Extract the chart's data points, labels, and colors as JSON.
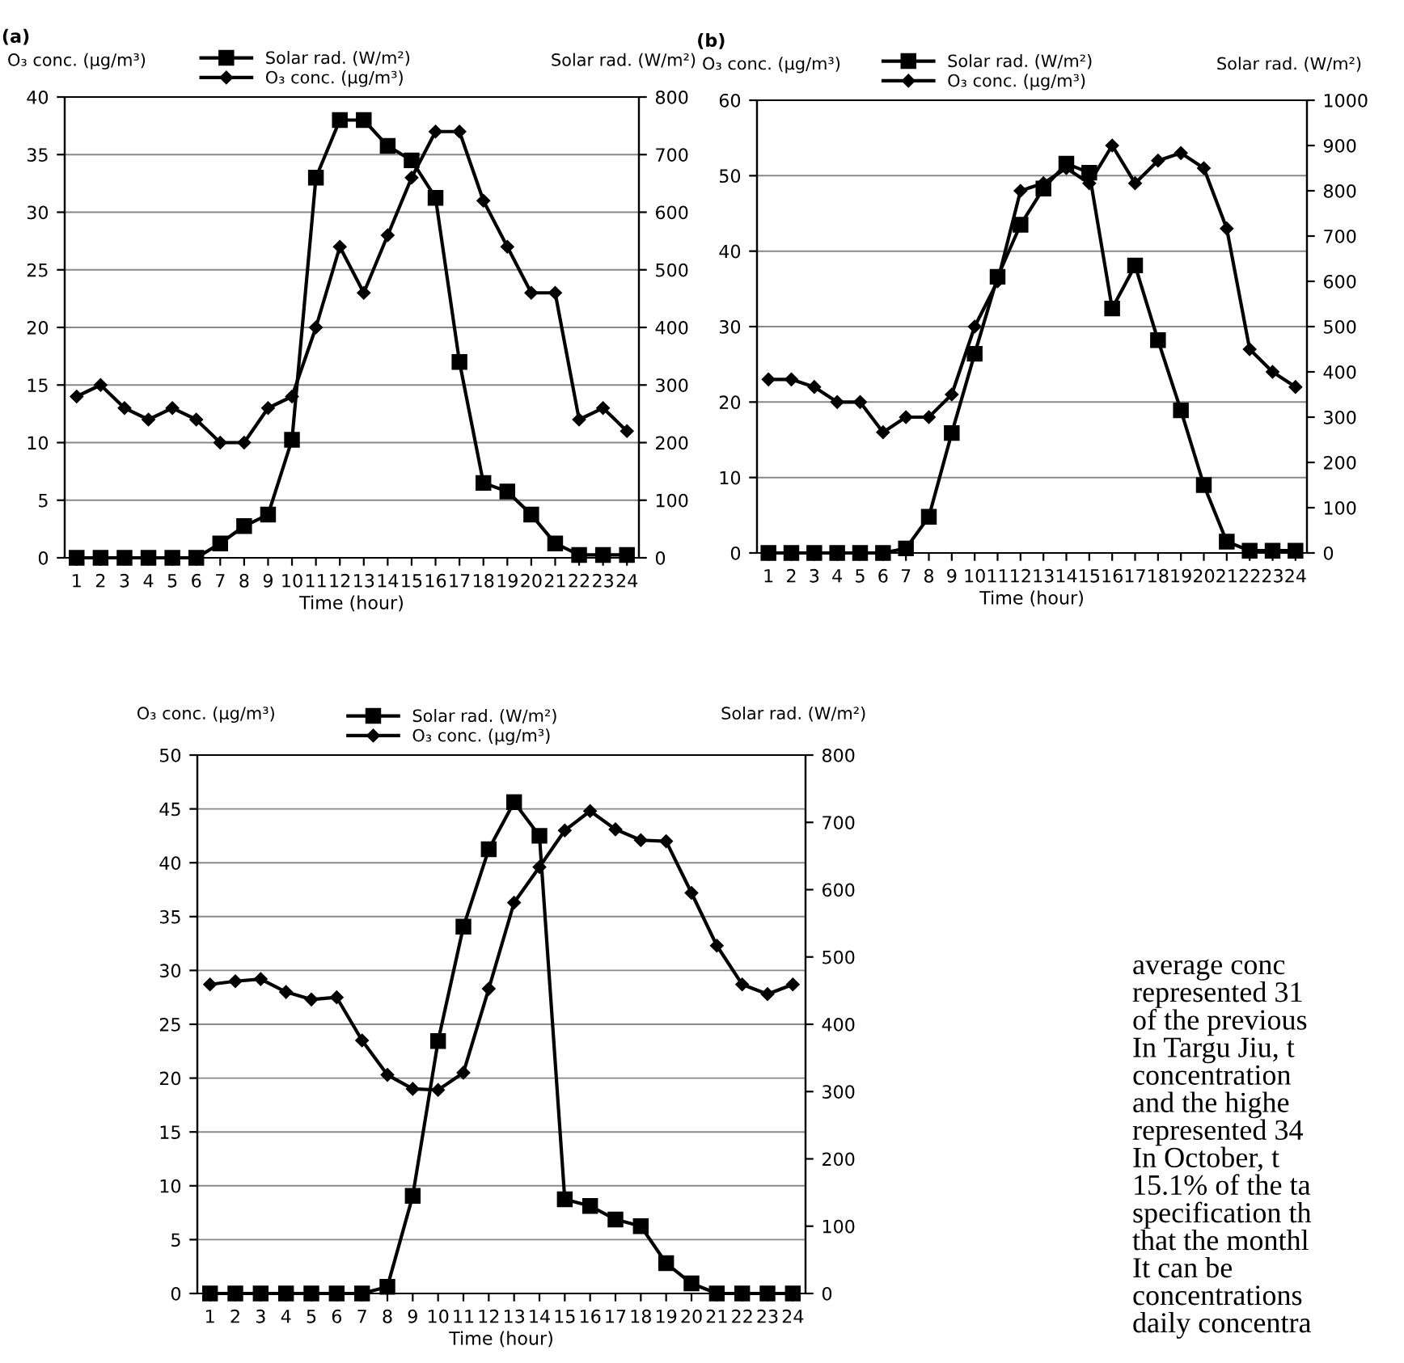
{
  "chart_data": [
    {
      "type": "line",
      "title": "(a)",
      "xlabel": "Time (hour)",
      "ylabel": "O₃ conc. (μg/m³)",
      "y2label": "Solar rad. (W/m²)",
      "categories": [
        "1",
        "2",
        "3",
        "4",
        "5",
        "6",
        "7",
        "8",
        "9",
        "10",
        "11",
        "12",
        "13",
        "14",
        "15",
        "16",
        "17",
        "18",
        "19",
        "20",
        "21",
        "22",
        "23",
        "24"
      ],
      "series": [
        {
          "name": "Solar rad. (W/m²)",
          "axis": "y2",
          "marker": "square",
          "color": "#000000",
          "values": [
            0,
            0,
            0,
            0,
            0,
            0,
            25,
            55,
            75,
            205,
            660,
            760,
            760,
            715,
            690,
            625,
            340,
            130,
            115,
            75,
            25,
            5,
            5,
            5
          ]
        },
        {
          "name": "O₃ conc. (μg/m³)",
          "marker": "diamond",
          "color": "#000000",
          "values": [
            14,
            15,
            13,
            12,
            13,
            12,
            10,
            10,
            13,
            14,
            20,
            27,
            23,
            28,
            33,
            37,
            37,
            31,
            27,
            23,
            23,
            12,
            13,
            11
          ]
        }
      ],
      "ylim": [
        0,
        40
      ],
      "yticks": [
        0,
        5,
        10,
        15,
        20,
        25,
        30,
        35,
        40
      ],
      "y2lim": [
        0,
        800
      ],
      "y2ticks": [
        0,
        100,
        200,
        300,
        400,
        500,
        600,
        700,
        800
      ],
      "grid": "y",
      "legend": "top"
    },
    {
      "type": "line",
      "title": "(b)",
      "xlabel": "Time (hour)",
      "ylabel": "O₃ conc. (μg/m³)",
      "y2label": "Solar rad. (W/m²)",
      "categories": [
        "1",
        "2",
        "3",
        "4",
        "5",
        "6",
        "7",
        "8",
        "9",
        "10",
        "11",
        "12",
        "13",
        "14",
        "15",
        "16",
        "17",
        "18",
        "19",
        "20",
        "21",
        "22",
        "23",
        "24"
      ],
      "series": [
        {
          "name": "Solar rad. (W/m²)",
          "axis": "y2",
          "marker": "square",
          "color": "#000000",
          "values": [
            0,
            0,
            0,
            0,
            0,
            0,
            10,
            80,
            265,
            440,
            610,
            725,
            805,
            860,
            840,
            540,
            635,
            470,
            315,
            150,
            25,
            5,
            5,
            5
          ]
        },
        {
          "name": "O₃ conc. (μg/m³)",
          "marker": "diamond",
          "color": "#000000",
          "values": [
            23,
            23,
            22,
            20,
            20,
            16,
            18,
            18,
            21,
            30,
            36,
            48,
            49,
            51,
            49,
            54,
            49,
            52,
            53,
            51,
            43,
            27,
            24,
            22
          ]
        }
      ],
      "ylim": [
        0,
        60
      ],
      "yticks": [
        0,
        10,
        20,
        30,
        40,
        50,
        60
      ],
      "y2lim": [
        0,
        1000
      ],
      "y2ticks": [
        0,
        100,
        200,
        300,
        400,
        500,
        600,
        700,
        800,
        900,
        1000
      ],
      "grid": "y",
      "legend": "top"
    },
    {
      "type": "line",
      "xlabel": "Time (hour)",
      "ylabel": "O₃ conc. (μg/m³)",
      "y2label": "Solar rad. (W/m²)",
      "categories": [
        "1",
        "2",
        "3",
        "4",
        "5",
        "6",
        "7",
        "8",
        "9",
        "10",
        "11",
        "12",
        "13",
        "14",
        "15",
        "16",
        "17",
        "18",
        "19",
        "20",
        "21",
        "22",
        "23",
        "24"
      ],
      "series": [
        {
          "name": "Solar rad. (W/m²)",
          "axis": "y2",
          "marker": "square",
          "color": "#000000",
          "values": [
            0,
            0,
            0,
            0,
            0,
            0,
            0,
            10,
            145,
            375,
            545,
            660,
            730,
            680,
            140,
            130,
            110,
            100,
            45,
            15,
            0,
            0,
            0,
            0
          ]
        },
        {
          "name": "O₃ conc. (μg/m³)",
          "marker": "diamond",
          "color": "#000000",
          "values": [
            28.7,
            29,
            29.2,
            28,
            27.3,
            27.5,
            23.5,
            20.3,
            19,
            18.9,
            20.5,
            28.3,
            36.3,
            39.6,
            43,
            44.8,
            43.1,
            42.1,
            42,
            37.2,
            32.3,
            28.7,
            27.8,
            28.7
          ]
        }
      ],
      "ylim": [
        0,
        50
      ],
      "yticks": [
        0,
        5,
        10,
        15,
        20,
        25,
        30,
        35,
        40,
        45,
        50
      ],
      "y2lim": [
        0,
        800
      ],
      "y2ticks": [
        0,
        100,
        200,
        300,
        400,
        500,
        600,
        700,
        800
      ],
      "grid": "y",
      "legend": "top"
    },
    {
      "type": "other",
      "annotations": [
        "average conc",
        "represented 31",
        "of the previous",
        "In Targu Jiu, t",
        "concentration",
        "and the highe",
        "represented 34",
        "In October, t",
        "15.1% of the ta",
        "specification th",
        "that the monthl",
        "It can be",
        "concentrations",
        "daily concentra"
      ]
    }
  ]
}
